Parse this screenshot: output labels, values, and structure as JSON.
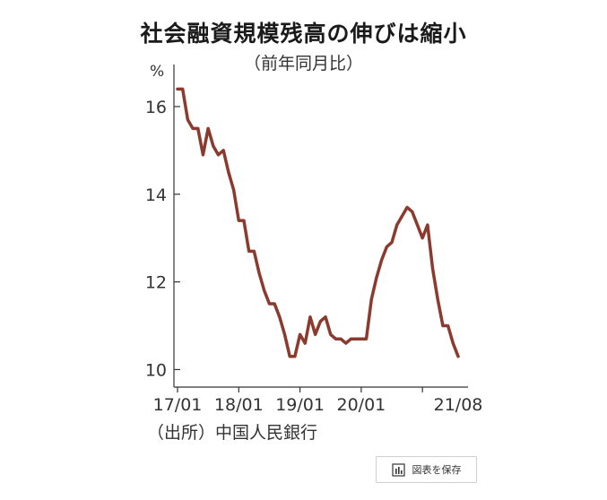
{
  "chart_data": {
    "type": "line",
    "title": "社会融資規模残高の伸びは縮小",
    "subtitle": "（前年同月比）",
    "ylabel": "%",
    "ylim": [
      9.6,
      17.0
    ],
    "yticks": [
      10,
      12,
      14,
      16
    ],
    "xticks": [
      "17/01",
      "18/01",
      "19/01",
      "20/01",
      "21/08"
    ],
    "x_start": "2017-01",
    "x_end": "2021-08",
    "grid": false,
    "series": [
      {
        "color": "#8b3a2e",
        "values": [
          16.4,
          16.4,
          15.7,
          15.5,
          15.5,
          14.9,
          15.5,
          15.1,
          14.9,
          15.0,
          14.5,
          14.1,
          13.4,
          13.4,
          12.7,
          12.7,
          12.2,
          11.8,
          11.5,
          11.5,
          11.2,
          10.8,
          10.3,
          10.3,
          10.8,
          10.6,
          11.2,
          10.8,
          11.1,
          11.2,
          10.8,
          10.7,
          10.7,
          10.6,
          10.7,
          10.7,
          10.7,
          10.7,
          11.6,
          12.1,
          12.5,
          12.8,
          12.9,
          13.3,
          13.5,
          13.7,
          13.6,
          13.3,
          13.0,
          13.3,
          12.3,
          11.6,
          11.0,
          11.0,
          10.6,
          10.3
        ]
      }
    ]
  },
  "source_note": "（出所）中国人民銀行",
  "save_button": {
    "label": "図表を保存",
    "icon": "bar-chart-icon"
  }
}
